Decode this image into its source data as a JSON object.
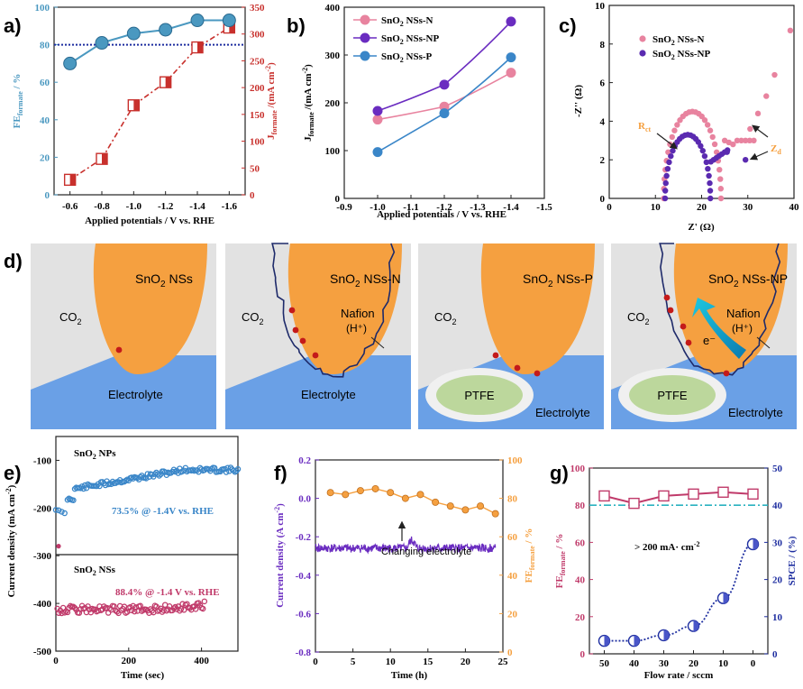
{
  "colors": {
    "teal": "#4a98c0",
    "red": "#c8302c",
    "pink": "#e8839f",
    "purple": "#6a2cc0",
    "blue": "#3a86c8",
    "orange": "#f5a040",
    "gray_bg": "#e2e2e2",
    "electrolyte": "#6aa0e6",
    "ptfe": "#bcd79c",
    "navy": "#1e2ea0",
    "cyan_dash": "#2ab2c0",
    "magenta": "#c03a6a",
    "violet": "#5a2ab0"
  },
  "chart_data": [
    {
      "panel": "a)",
      "type": "line",
      "x": [
        -0.6,
        -0.8,
        -1.0,
        -1.2,
        -1.4,
        -1.6
      ],
      "x_tick_labels": [
        "-0.6",
        "-0.8",
        "-1.0",
        "-1.2",
        "-1.4",
        "-1.6"
      ],
      "series": [
        {
          "axis": "left",
          "values": [
            70,
            81,
            86,
            88,
            93,
            93
          ]
        },
        {
          "axis": "right",
          "values": [
            28,
            67,
            167,
            210,
            275,
            312
          ]
        }
      ],
      "hline": 80,
      "xlabel": "Applied potentials / V vs. RHE",
      "ylabel_left": "FE",
      "ylabel_left_sub": "formate",
      "ylabel_left_unit": " / %",
      "ylabel_right": "J",
      "ylabel_right_sub": "formate",
      "ylabel_right_unit": " /(mA cm",
      "ylabel_right_sup": "-2",
      "ylim_left": [
        0,
        100
      ],
      "ylim_right": [
        0,
        350
      ],
      "y_ticks_left": [
        "0",
        "20",
        "40",
        "60",
        "80",
        "100"
      ],
      "y_ticks_right": [
        "0",
        "50",
        "100",
        "150",
        "200",
        "250",
        "300",
        "350"
      ]
    },
    {
      "panel": "b)",
      "type": "line",
      "x_tick_labels": [
        "-0.9",
        "-1.0",
        "-1.1",
        "-1.2",
        "-1.3",
        "-1.4",
        "-1.5"
      ],
      "xlim": [
        -0.9,
        -1.5
      ],
      "x": [
        -1.0,
        -1.2,
        -1.4
      ],
      "series": [
        {
          "name": "SnO2 NSs-N",
          "values": [
            165,
            192,
            263
          ]
        },
        {
          "name": "SnO2 NSs-NP",
          "values": [
            183,
            238,
            370
          ]
        },
        {
          "name": "SnO2 NSs-P",
          "values": [
            97,
            178,
            295
          ]
        }
      ],
      "legend": [
        {
          "pre": "SnO",
          "sub": "2",
          "post": " NSs-N"
        },
        {
          "pre": "SnO",
          "sub": "2",
          "post": " NSs-NP"
        },
        {
          "pre": "SnO",
          "sub": "2",
          "post": "  NSs-P"
        }
      ],
      "xlabel": "Applied potentials / V vs. RHE",
      "ylabel": "J",
      "ylabel_sub": "formate",
      "ylabel_unit": " /(mA cm",
      "ylabel_sup": "-2",
      "ylim": [
        0,
        400
      ],
      "y_ticks": [
        "0",
        "100",
        "200",
        "300",
        "400"
      ]
    },
    {
      "panel": "c)",
      "type": "scatter",
      "legend": [
        {
          "pre": "SnO",
          "sub": "2",
          "post": " NSs-N"
        },
        {
          "pre": "SnO",
          "sub": "2",
          "post": " NSs-NP"
        }
      ],
      "xlabel": "Z' (Ω)",
      "ylabel": "-Z'' (Ω)",
      "xlim": [
        0,
        40
      ],
      "ylim": [
        0,
        10
      ],
      "x_ticks": [
        "0",
        "10",
        "20",
        "30",
        "40"
      ],
      "y_ticks": [
        "0",
        "2",
        "4",
        "6",
        "8",
        "10"
      ],
      "annotation_rct": "R",
      "annotation_rct_sub": "ct",
      "annotation_zd": "Z",
      "annotation_zd_sub": "d"
    },
    {
      "panel": "e)",
      "type": "scatter",
      "xlabel": "Time (sec)",
      "ylabel": "Current density (mA cm",
      "ylabel_sup": "-2",
      "ylabel_close": ")",
      "xlim": [
        0,
        500
      ],
      "ylim": [
        -500,
        -50
      ],
      "x_ticks": [
        "0",
        "200",
        "400"
      ],
      "y_ticks": [
        "-500",
        "-400",
        "-300",
        "-200",
        "-100"
      ],
      "top_title_pre": "SnO",
      "top_title_sub": "2",
      "top_title_post": "  NPs",
      "top_note": "73.5% @ -1.4V vs. RHE",
      "bottom_title_pre": "SnO",
      "bottom_title_sub": "2",
      "bottom_title_post": "  NSs",
      "bottom_note": "88.4% @ -1.4 V vs. RHE"
    },
    {
      "panel": "f)",
      "type": "line",
      "xlabel": "Time (h)",
      "ylabel_left": "Current density (A cm",
      "ylabel_left_sup": "-2",
      "ylabel_left_close": ")",
      "ylabel_right": "FE",
      "ylabel_right_sub": "formate",
      "ylabel_right_unit": " / %",
      "xlim": [
        0,
        25
      ],
      "ylim_left": [
        -0.8,
        0.2
      ],
      "ylim_right": [
        0,
        100
      ],
      "x_ticks": [
        "0",
        "5",
        "10",
        "15",
        "20",
        "25"
      ],
      "y_ticks_left": [
        "-0.8",
        "-0.6",
        "-0.4",
        "-0.2",
        "0.0",
        "0.2"
      ],
      "y_ticks_right": [
        "0",
        "20",
        "40",
        "60",
        "80",
        "100"
      ],
      "fe_x": [
        2,
        4,
        6,
        8,
        10,
        12,
        14,
        16,
        18,
        20,
        22,
        24
      ],
      "fe_values": [
        83,
        82,
        84,
        85,
        83,
        80,
        82,
        78,
        76,
        74,
        76,
        72
      ],
      "current_level": -0.26,
      "annotation": "Changing electrolyte"
    },
    {
      "panel": "g)",
      "type": "line",
      "xlabel": "Flow rate / sccm",
      "ylabel_left": "FE",
      "ylabel_left_sub": "formate",
      "ylabel_left_unit": " / %",
      "ylabel_right": "SPCE / (%)",
      "x": [
        50,
        40,
        30,
        20,
        10,
        5
      ],
      "x_tick_labels": [
        "50",
        "40",
        "30",
        "20",
        "10",
        "0"
      ],
      "fe_values": [
        85,
        81,
        85,
        86,
        87,
        86
      ],
      "spce_values": [
        3.5,
        3.5,
        5,
        7.5,
        15,
        29.5
      ],
      "ylim_left": [
        0,
        100
      ],
      "ylim_right": [
        0,
        50
      ],
      "y_ticks_left": [
        "0",
        "20",
        "40",
        "60",
        "80",
        "100"
      ],
      "y_ticks_right": [
        "0",
        "10",
        "20",
        "30",
        "40",
        "50"
      ],
      "hline": 80,
      "annotation": "> 200 mA· cm",
      "annotation_sup": "-2"
    }
  ],
  "schematic": {
    "panel": "d)",
    "labels": {
      "co2": "CO",
      "co2_sub": "2",
      "electrolyte": "Electrolyte",
      "ptfe": "PTFE",
      "nafion": "Nafion",
      "hplus": "(H⁺)",
      "electron": "e⁻"
    },
    "cells": [
      {
        "title_pre": "SnO",
        "title_sub": "2",
        "title_post": " NSs"
      },
      {
        "title_pre": "SnO",
        "title_sub": "2",
        "title_post": " NSs-N"
      },
      {
        "title_pre": "SnO",
        "title_sub": "2",
        "title_post": " NSs-P"
      },
      {
        "title_pre": "SnO",
        "title_sub": "2",
        "title_post": " NSs-NP"
      }
    ]
  }
}
